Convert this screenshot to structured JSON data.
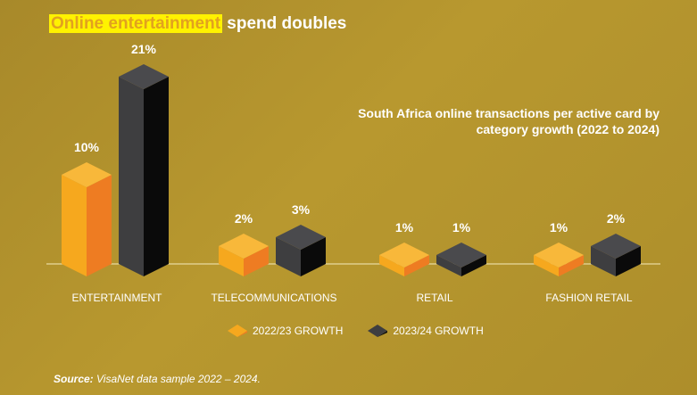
{
  "title": {
    "highlight": "Online entertainment",
    "rest": " spend doubles"
  },
  "subtitle_lines": [
    "South Africa online transactions per active card by",
    "category growth (2022 to 2024)"
  ],
  "source": {
    "label": "Source:",
    "text": " VisaNet data sample 2022 – 2024."
  },
  "colors": {
    "orange_front": "#f6a81e",
    "orange_side": "#ee7c22",
    "orange_top": "#f8b83a",
    "dark_front": "#3e3e40",
    "dark_side": "#0a0a0a",
    "dark_top": "#4a4a4d",
    "baseline": "#e8d9a0"
  },
  "chart_data": {
    "type": "bar",
    "title": "South Africa online transactions per active card by category growth (2022 to 2024)",
    "categories": [
      "ENTERTAINMENT",
      "TELECOMMUNICATIONS",
      "RETAIL",
      "FASHION RETAIL"
    ],
    "series": [
      {
        "name": "2022/23 GROWTH",
        "values": [
          10,
          2,
          1,
          1
        ],
        "labels": [
          "10%",
          "2%",
          "1%",
          "1%"
        ]
      },
      {
        "name": "2023/24 GROWTH",
        "values": [
          21,
          3,
          1,
          2
        ],
        "labels": [
          "21%",
          "3%",
          "1%",
          "2%"
        ]
      }
    ],
    "ylim": [
      0,
      21
    ],
    "legend_position": "bottom",
    "grid": false
  }
}
